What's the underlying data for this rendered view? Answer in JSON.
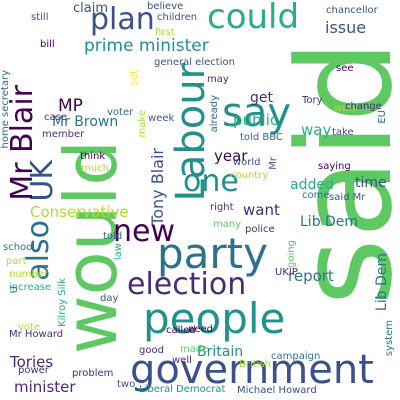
{
  "colors": {
    "background": "#ffffff",
    "dark_purple": "#440154",
    "purple": "#472c7a",
    "indigo": "#3b518b",
    "blue": "#31688e",
    "steel_blue": "#2c728e",
    "teal": "#21918c",
    "green_teal": "#28ae80",
    "green": "#5ec962",
    "light_green": "#addc30",
    "yellow": "#fde725"
  },
  "words": {
    "said": "said",
    "would": "would",
    "government": "government",
    "people": "people",
    "party": "party",
    "labour": "Labour",
    "election": "election",
    "say": "say",
    "could": "could",
    "plan": "plan",
    "new": "new",
    "one": "one",
    "also": "also",
    "uk": "UK",
    "mr_blair": "Mr Blair",
    "prime_minister": "prime minister",
    "mp": "MP",
    "mr_brown": "Mr Brown",
    "conservative": "Conservative",
    "tony_blair": "Tony Blair",
    "year": "year",
    "public": "public",
    "way": "way",
    "issue": "issue",
    "get": "get",
    "added": "added",
    "want": "want",
    "time": "time",
    "lib_dem": "Lib Dem",
    "report": "report",
    "britain": "Britain",
    "tories": "Tories",
    "minister": "minister",
    "claim": "claim",
    "mr_howard": "Mr Howard",
    "michael_howard": "Michael Howard",
    "liberal_democrat": "Liberal Democrat",
    "campaign": "campaign",
    "chancellor": "chancellor",
    "believe": "believe",
    "children": "children",
    "first": "first",
    "general_election": "general election",
    "may": "may",
    "see": "see",
    "tory": "Tory",
    "work": "work",
    "take": "take",
    "change": "change",
    "still": "still",
    "bill": "bill",
    "case": "case",
    "member": "member",
    "think": "think",
    "much": "much",
    "school": "school",
    "part": "part",
    "told": "told",
    "number": "number",
    "increase": "increase",
    "vote": "vote",
    "power": "power",
    "problem": "problem",
    "two": "two",
    "day": "day",
    "called": "called",
    "need": "need",
    "made": "made",
    "good": "good",
    "well": "well",
    "british": "British",
    "voter": "voter",
    "week": "week",
    "told_bbc": "told BBC",
    "world": "world",
    "country": "country",
    "right": "right",
    "many": "many",
    "police": "police",
    "come": "come",
    "said_mr": "said Mr",
    "saying": "saying",
    "ukip": "UKIP",
    "home_secretary": "home secretary",
    "kilroy_silk": "Kilroy Silk",
    "law": "law",
    "make": "make",
    "set": "set",
    "already": "already",
    "eu": "EU",
    "system": "system",
    "going": "going",
    "mr": "Mr",
    "u": "U"
  }
}
